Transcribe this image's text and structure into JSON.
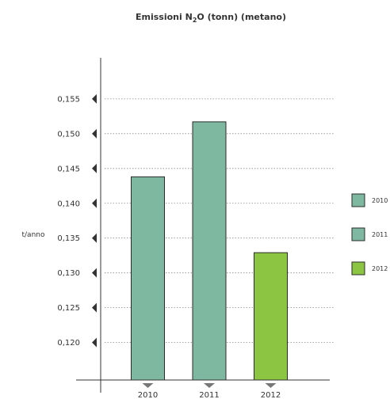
{
  "chart_data": {
    "type": "bar",
    "title_main": "Emissioni N",
    "title_sub": "2",
    "title_rest": "O (tonn) (metano)",
    "ylabel": "t/anno",
    "xlabel": "",
    "categories": [
      "2010",
      "2011",
      "2012"
    ],
    "values": [
      0.1438,
      0.1517,
      0.1329
    ],
    "colors": [
      "#7fb8a1",
      "#7fb8a1",
      "#8bc541"
    ],
    "ylim": [
      0.1162,
      0.1609
    ],
    "y_ticks": [
      {
        "value": 0.155,
        "label": "0,155"
      },
      {
        "value": 0.15,
        "label": "0,150"
      },
      {
        "value": 0.145,
        "label": "0,145"
      },
      {
        "value": 0.14,
        "label": "0,140"
      },
      {
        "value": 0.135,
        "label": "0,135"
      },
      {
        "value": 0.13,
        "label": "0,130"
      },
      {
        "value": 0.125,
        "label": "0,125"
      },
      {
        "value": 0.12,
        "label": "0,120"
      }
    ],
    "grid": "dotted horizontal lines",
    "legend": {
      "placement": "right",
      "entries": [
        {
          "label": "2010",
          "color": "#7fb8a1"
        },
        {
          "label": "2011",
          "color": "#7fb8a1"
        },
        {
          "label": "2012",
          "color": "#8bc541"
        }
      ]
    },
    "axis_color": "#333333",
    "marker_color": "#333333",
    "x_marker_color": "#777777"
  }
}
